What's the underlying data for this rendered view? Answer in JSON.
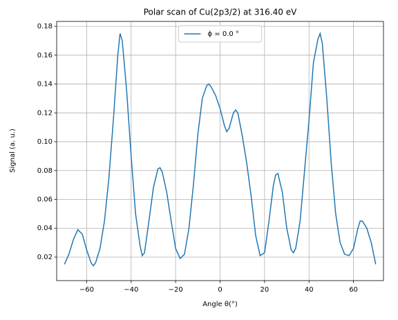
{
  "chart_data": {
    "type": "line",
    "title": "Polar scan of Cu(2p3/2) at 316.40 eV",
    "xlabel": "Angle θ(°)",
    "ylabel": "Signal (a. u.)",
    "x": [
      -70,
      -68,
      -66,
      -64,
      -62,
      -60,
      -58,
      -57,
      -56,
      -54,
      -52,
      -50,
      -48,
      -46,
      -45,
      -44,
      -42,
      -40,
      -38,
      -36,
      -35,
      -34,
      -32,
      -30,
      -28,
      -27,
      -26,
      -24,
      -22,
      -20,
      -18,
      -16,
      -14,
      -12,
      -10,
      -8,
      -6,
      -5,
      -4,
      -2,
      0,
      2,
      3,
      4,
      6,
      7,
      8,
      10,
      12,
      14,
      16,
      18,
      20,
      22,
      24,
      25,
      26,
      28,
      30,
      32,
      33,
      34,
      36,
      38,
      40,
      42,
      44,
      45,
      46,
      48,
      50,
      52,
      54,
      56,
      58,
      60,
      62,
      63,
      64,
      66,
      68,
      70
    ],
    "series": [
      {
        "name": "ϕ = 0.0 °",
        "color": "#1f77b4",
        "values": [
          0.015,
          0.022,
          0.032,
          0.039,
          0.036,
          0.025,
          0.016,
          0.014,
          0.016,
          0.026,
          0.045,
          0.075,
          0.115,
          0.16,
          0.175,
          0.17,
          0.135,
          0.09,
          0.05,
          0.028,
          0.021,
          0.023,
          0.045,
          0.068,
          0.081,
          0.082,
          0.079,
          0.065,
          0.045,
          0.026,
          0.019,
          0.022,
          0.04,
          0.07,
          0.105,
          0.13,
          0.139,
          0.14,
          0.138,
          0.132,
          0.123,
          0.111,
          0.107,
          0.109,
          0.12,
          0.122,
          0.12,
          0.104,
          0.085,
          0.062,
          0.035,
          0.021,
          0.023,
          0.045,
          0.07,
          0.077,
          0.078,
          0.065,
          0.04,
          0.025,
          0.023,
          0.026,
          0.045,
          0.08,
          0.115,
          0.155,
          0.171,
          0.175,
          0.168,
          0.13,
          0.085,
          0.05,
          0.03,
          0.022,
          0.021,
          0.026,
          0.04,
          0.045,
          0.045,
          0.04,
          0.03,
          0.015
        ]
      }
    ],
    "xlim": [
      -73.5,
      73.5
    ],
    "ylim": [
      0.0037,
      0.1834
    ],
    "xticks": [
      {
        "value": -60,
        "label": "−60"
      },
      {
        "value": -40,
        "label": "−40"
      },
      {
        "value": -20,
        "label": "−20"
      },
      0,
      20,
      40,
      60
    ],
    "yticks": [
      0.02,
      0.04,
      0.06,
      0.08,
      {
        "value": 0.1,
        "label": "0.10"
      },
      0.12,
      0.14,
      0.16,
      0.18
    ],
    "grid": true,
    "legend": "upper center"
  }
}
